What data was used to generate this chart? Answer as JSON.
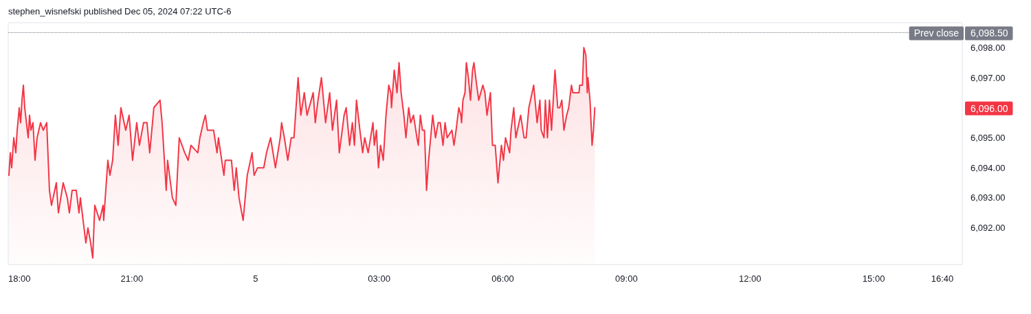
{
  "chart_data": {
    "type": "area",
    "title": "stephen_wisnefski published Dec 05, 2024 07:22 UTC-6",
    "xlim": [
      "2024-12-04T18:00",
      "2024-12-05T17:09"
    ],
    "xticks": [
      {
        "value": "2024-12-04T18:00",
        "label": "18:00"
      },
      {
        "value": "2024-12-04T21:00",
        "label": "21:00"
      },
      {
        "value": "2024-12-05T00:00",
        "label": "5"
      },
      {
        "value": "2024-12-05T03:00",
        "label": "03:00"
      },
      {
        "value": "2024-12-05T06:00",
        "label": "06:00"
      },
      {
        "value": "2024-12-05T09:00",
        "label": "09:00"
      },
      {
        "value": "2024-12-05T12:00",
        "label": "12:00"
      },
      {
        "value": "2024-12-05T15:00",
        "label": "15:00"
      },
      {
        "value": "2024-12-05T16:40",
        "label": "16:40"
      }
    ],
    "ylim": [
      6090.78,
      6098.83
    ],
    "yticks": [
      {
        "value": 6092,
        "label": "6,092.00"
      },
      {
        "value": 6093,
        "label": "6,093.00"
      },
      {
        "value": 6094,
        "label": "6,094.00"
      },
      {
        "value": 6095,
        "label": "6,095.00"
      },
      {
        "value": 6097,
        "label": "6,097.00"
      },
      {
        "value": 6098,
        "label": "6,098.00"
      }
    ],
    "grid": false,
    "marker": "none",
    "line_style": "solid",
    "ref_lines": [
      {
        "axis": "y",
        "value": 6098.5,
        "label": "Prev close",
        "color": "#787b86",
        "line_style": "dotted"
      }
    ],
    "annotations": [
      "6,098.50",
      "6,096.00"
    ],
    "series": [
      {
        "color": "#f23645",
        "x": [
          "2024-12-04T18:01",
          "2024-12-04T18:03",
          "2024-12-04T18:05",
          "2024-12-04T18:08",
          "2024-12-04T18:11",
          "2024-12-04T18:13",
          "2024-12-04T18:16",
          "2024-12-04T18:18",
          "2024-12-04T18:20",
          "2024-12-04T18:22",
          "2024-12-04T18:24",
          "2024-12-04T18:29",
          "2024-12-04T18:31",
          "2024-12-04T18:33",
          "2024-12-04T18:36",
          "2024-12-04T18:39",
          "2024-12-04T18:42",
          "2024-12-04T18:47",
          "2024-12-04T18:51",
          "2024-12-04T18:56",
          "2024-12-04T19:00",
          "2024-12-04T19:03",
          "2024-12-04T19:10",
          "2024-12-04T19:13",
          "2024-12-04T19:20",
          "2024-12-04T19:26",
          "2024-12-04T19:29",
          "2024-12-04T19:33",
          "2024-12-04T19:39",
          "2024-12-04T19:43",
          "2024-12-04T19:45",
          "2024-12-04T19:53",
          "2024-12-04T19:56",
          "2024-12-04T20:00",
          "2024-12-04T20:03",
          "2024-12-04T20:06",
          "2024-12-04T20:13",
          "2024-12-04T20:18",
          "2024-12-04T20:19",
          "2024-12-04T20:25",
          "2024-12-04T20:28",
          "2024-12-04T20:32",
          "2024-12-04T20:36",
          "2024-12-04T20:40",
          "2024-12-04T20:44",
          "2024-12-04T20:51",
          "2024-12-04T20:56",
          "2024-12-04T21:01",
          "2024-12-04T21:07",
          "2024-12-04T21:11",
          "2024-12-04T21:17",
          "2024-12-04T21:22",
          "2024-12-04T21:26",
          "2024-12-04T21:32",
          "2024-12-04T21:41",
          "2024-12-04T21:44",
          "2024-12-04T21:50",
          "2024-12-04T21:52",
          "2024-12-04T21:59",
          "2024-12-04T22:04",
          "2024-12-04T22:09",
          "2024-12-04T22:17",
          "2024-12-04T22:22",
          "2024-12-04T22:26",
          "2024-12-04T22:36",
          "2024-12-04T22:39",
          "2024-12-04T22:44",
          "2024-12-04T22:47",
          "2024-12-04T22:50",
          "2024-12-04T22:59",
          "2024-12-04T23:04",
          "2024-12-04T23:06",
          "2024-12-04T23:14",
          "2024-12-04T23:16",
          "2024-12-04T23:25",
          "2024-12-04T23:29",
          "2024-12-04T23:32",
          "2024-12-04T23:36",
          "2024-12-04T23:42",
          "2024-12-04T23:48",
          "2024-12-04T23:55",
          "2024-12-04T23:58",
          "2024-12-05T00:03",
          "2024-12-05T00:12",
          "2024-12-05T00:16",
          "2024-12-05T00:22",
          "2024-12-05T00:29",
          "2024-12-05T00:36",
          "2024-12-05T00:38",
          "2024-12-05T00:42",
          "2024-12-05T00:47",
          "2024-12-05T00:52",
          "2024-12-05T00:56",
          "2024-12-05T01:02",
          "2024-12-05T01:06",
          "2024-12-05T01:11",
          "2024-12-05T01:15",
          "2024-12-05T01:18",
          "2024-12-05T01:24",
          "2024-12-05T01:27",
          "2024-12-05T01:31",
          "2024-12-05T01:36",
          "2024-12-05T01:42",
          "2024-12-05T01:48",
          "2024-12-05T01:52",
          "2024-12-05T01:58",
          "2024-12-05T02:02",
          "2024-12-05T02:09",
          "2024-12-05T02:12",
          "2024-12-05T02:17",
          "2024-12-05T02:21",
          "2024-12-05T02:24",
          "2024-12-05T02:27",
          "2024-12-05T02:32",
          "2024-12-05T02:36",
          "2024-12-05T02:39",
          "2024-12-05T02:44",
          "2024-12-05T02:51",
          "2024-12-05T02:53",
          "2024-12-05T02:56",
          "2024-12-05T02:59",
          "2024-12-05T03:02",
          "2024-12-05T03:06",
          "2024-12-05T03:10",
          "2024-12-05T03:14",
          "2024-12-05T03:17",
          "2024-12-05T03:18",
          "2024-12-05T03:22",
          "2024-12-05T03:26",
          "2024-12-05T03:29",
          "2024-12-05T03:32",
          "2024-12-05T03:36",
          "2024-12-05T03:39",
          "2024-12-05T03:43",
          "2024-12-05T03:46",
          "2024-12-05T03:50",
          "2024-12-05T03:55",
          "2024-12-05T03:57",
          "2024-12-05T04:00",
          "2024-12-05T04:03",
          "2024-12-05T04:06",
          "2024-12-05T04:09",
          "2024-12-05T04:12",
          "2024-12-05T04:16",
          "2024-12-05T04:18",
          "2024-12-05T04:22",
          "2024-12-05T04:26",
          "2024-12-05T04:29",
          "2024-12-05T04:33",
          "2024-12-05T04:36",
          "2024-12-05T04:39",
          "2024-12-05T04:46",
          "2024-12-05T04:49",
          "2024-12-05T04:52",
          "2024-12-05T04:56",
          "2024-12-05T04:59",
          "2024-12-05T05:00",
          "2024-12-05T05:02",
          "2024-12-05T05:05",
          "2024-12-05T05:07",
          "2024-12-05T05:10",
          "2024-12-05T05:13",
          "2024-12-05T05:16",
          "2024-12-05T05:18",
          "2024-12-05T05:22",
          "2024-12-05T05:25",
          "2024-12-05T05:31",
          "2024-12-05T05:34",
          "2024-12-05T05:37",
          "2024-12-05T05:42",
          "2024-12-05T05:45",
          "2024-12-05T05:49",
          "2024-12-05T05:53",
          "2024-12-05T05:58",
          "2024-12-05T06:01",
          "2024-12-05T06:04",
          "2024-12-05T06:10",
          "2024-12-05T06:12",
          "2024-12-05T06:16",
          "2024-12-05T06:19",
          "2024-12-05T06:26",
          "2024-12-05T06:31",
          "2024-12-05T06:34",
          "2024-12-05T06:38",
          "2024-12-05T06:45",
          "2024-12-05T06:50",
          "2024-12-05T06:54",
          "2024-12-05T06:56",
          "2024-12-05T07:00",
          "2024-12-05T07:02",
          "2024-12-05T07:05",
          "2024-12-05T07:08",
          "2024-12-05T07:11",
          "2024-12-05T07:16",
          "2024-12-05T07:20",
          "2024-12-05T07:23",
          "2024-12-05T07:26",
          "2024-12-05T07:29",
          "2024-12-05T07:33",
          "2024-12-05T07:36",
          "2024-12-05T07:40",
          "2024-12-05T07:42",
          "2024-12-05T07:51",
          "2024-12-05T07:52",
          "2024-12-05T07:56",
          "2024-12-05T07:58",
          "2024-12-05T08:01",
          "2024-12-05T08:03",
          "2024-12-05T08:04",
          "2024-12-05T08:07",
          "2024-12-05T08:10",
          "2024-12-05T08:12",
          "2024-12-05T08:14"
        ],
        "values": [
          6093.75,
          6094.5,
          6094,
          6095,
          6094.5,
          6095.25,
          6096,
          6095.5,
          6096.25,
          6096.75,
          6096,
          6095,
          6095.75,
          6095.25,
          6095.5,
          6094.25,
          6095,
          6095.5,
          6095.25,
          6095.5,
          6093.25,
          6092.75,
          6093.5,
          6092.5,
          6093.5,
          6093,
          6092.5,
          6093.25,
          6093.25,
          6092.5,
          6093,
          6091.5,
          6092,
          6091.5,
          6091,
          6092.75,
          6092.25,
          6092.75,
          6092.25,
          6094.25,
          6093.75,
          6094.25,
          6095.75,
          6094.75,
          6096,
          6095.25,
          6095.75,
          6094.25,
          6095.5,
          6094.75,
          6095.5,
          6095.5,
          6094.5,
          6096,
          6096.25,
          6095.5,
          6093.25,
          6094.25,
          6093,
          6092.75,
          6095,
          6094.5,
          6094.25,
          6094.75,
          6094.5,
          6095,
          6095.5,
          6095.75,
          6095.25,
          6095.25,
          6094.5,
          6095,
          6093.75,
          6094.25,
          6094.25,
          6093.25,
          6094,
          6093,
          6092.25,
          6093.75,
          6094.5,
          6093.75,
          6094,
          6094,
          6094.5,
          6095,
          6094,
          6095,
          6095.5,
          6095,
          6094.25,
          6095,
          6095,
          6097,
          6095.75,
          6096.5,
          6095.75,
          6096,
          6096.5,
          6095.5,
          6096.25,
          6097,
          6095.5,
          6096.5,
          6095.25,
          6096.25,
          6094.5,
          6095.75,
          6096,
          6094.75,
          6095.5,
          6094.75,
          6096.25,
          6095.25,
          6094.5,
          6095,
          6094.5,
          6095.5,
          6094.75,
          6095.25,
          6094,
          6094.75,
          6094.25,
          6095.75,
          6096.75,
          6096.5,
          6096,
          6097.25,
          6096.5,
          6097.5,
          6096.5,
          6095.75,
          6095,
          6096,
          6095.5,
          6095.75,
          6095,
          6094.75,
          6095.75,
          6095.25,
          6095.25,
          6093.25,
          6094.25,
          6095.25,
          6095.75,
          6095,
          6095.5,
          6095.5,
          6094.75,
          6095.5,
          6095,
          6095.25,
          6094.75,
          6095.25,
          6096,
          6095.75,
          6095.5,
          6096.25,
          6096.5,
          6097.5,
          6097,
          6096.25,
          6097.25,
          6097.5,
          6096.75,
          6096.25,
          6096.75,
          6096.5,
          6095.75,
          6096.5,
          6094.75,
          6094.75,
          6093.5,
          6094.75,
          6094.25,
          6095,
          6094.5,
          6095.25,
          6096,
          6095,
          6095.75,
          6095,
          6095,
          6096,
          6096.75,
          6095.5,
          6096.25,
          6095.25,
          6095,
          6096.25,
          6095,
          6096.25,
          6095.25,
          6097.25,
          6096,
          6096,
          6096.25,
          6095.25,
          6095.75,
          6096,
          6096.75,
          6096.5,
          6096.5,
          6096.75,
          6096.75,
          6098,
          6097.75,
          6096.5,
          6097,
          6096.25,
          6094.75,
          6095.25,
          6096
        ]
      }
    ]
  }
}
